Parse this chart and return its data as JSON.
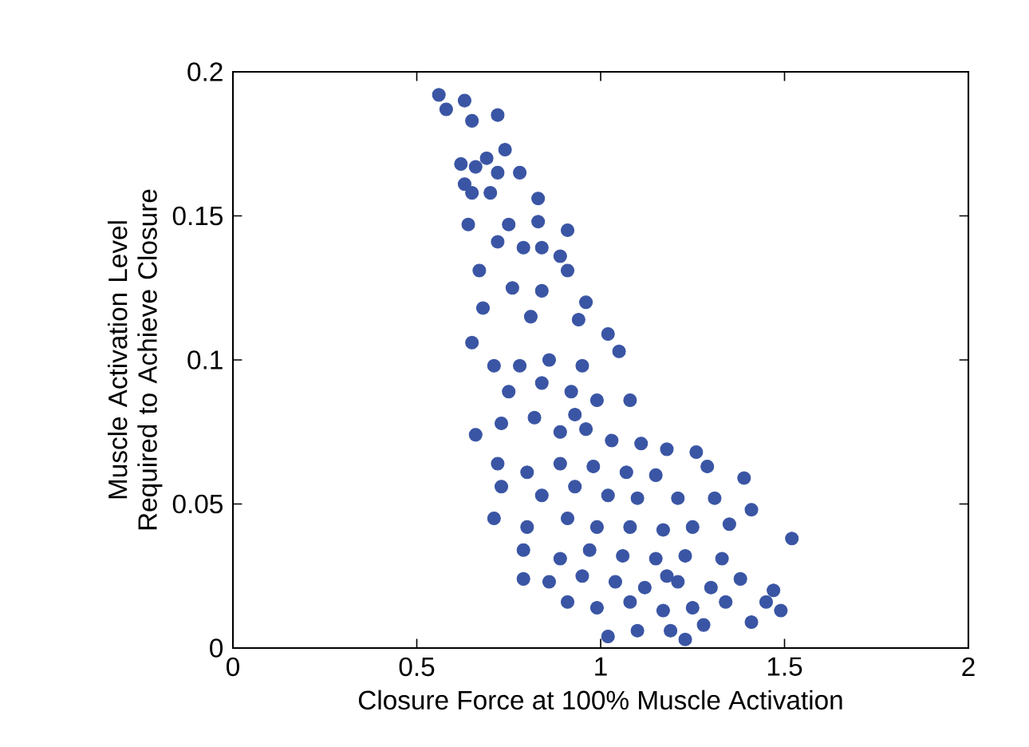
{
  "chart_data": {
    "type": "scatter",
    "xlabel": "Closure Force at 100% Muscle Activation",
    "ylabel": "Muscle Activation Level Required to Achieve Closure",
    "xlim": [
      0,
      2
    ],
    "ylim": [
      0,
      0.2
    ],
    "xticks": [
      0,
      0.5,
      1,
      1.5,
      2
    ],
    "yticks": [
      0,
      0.05,
      0.1,
      0.15,
      0.2
    ],
    "marker": "circle",
    "grid": false,
    "series": [
      {
        "color": "#3a55a4",
        "x": [
          0.56,
          0.63,
          0.58,
          0.65,
          0.72,
          0.74,
          0.66,
          0.62,
          0.69,
          0.72,
          0.63,
          0.78,
          0.65,
          0.7,
          0.83,
          0.64,
          0.75,
          0.83,
          0.91,
          0.72,
          0.79,
          0.84,
          0.89,
          0.91,
          0.67,
          0.76,
          0.84,
          0.96,
          0.68,
          0.81,
          0.94,
          0.65,
          1.02,
          0.71,
          0.78,
          0.86,
          0.95,
          1.05,
          0.75,
          0.84,
          0.92,
          0.99,
          1.08,
          0.66,
          0.73,
          0.82,
          0.89,
          0.96,
          1.03,
          1.11,
          1.18,
          1.26,
          0.72,
          0.8,
          0.89,
          0.98,
          1.07,
          1.15,
          1.29,
          0.73,
          0.84,
          0.93,
          1.02,
          1.1,
          1.21,
          1.31,
          0.71,
          0.8,
          0.91,
          0.99,
          1.08,
          1.17,
          1.25,
          1.35,
          1.52,
          0.79,
          0.89,
          0.97,
          1.06,
          1.15,
          1.23,
          1.33,
          0.79,
          0.86,
          0.95,
          1.04,
          1.12,
          1.21,
          1.3,
          1.38,
          0.91,
          0.99,
          1.08,
          1.17,
          1.25,
          1.34,
          1.45,
          1.49,
          1.02,
          1.1,
          1.19,
          1.28,
          1.41,
          1.23,
          1.39,
          1.41,
          1.47,
          0.93,
          1.18
        ],
        "values": [
          0.192,
          0.19,
          0.187,
          0.183,
          0.185,
          0.173,
          0.167,
          0.168,
          0.17,
          0.165,
          0.161,
          0.165,
          0.158,
          0.158,
          0.156,
          0.147,
          0.147,
          0.148,
          0.145,
          0.141,
          0.139,
          0.139,
          0.136,
          0.131,
          0.131,
          0.125,
          0.124,
          0.12,
          0.118,
          0.115,
          0.114,
          0.106,
          0.109,
          0.098,
          0.098,
          0.1,
          0.098,
          0.103,
          0.089,
          0.092,
          0.089,
          0.086,
          0.086,
          0.074,
          0.078,
          0.08,
          0.075,
          0.076,
          0.072,
          0.071,
          0.069,
          0.068,
          0.064,
          0.061,
          0.064,
          0.063,
          0.061,
          0.06,
          0.063,
          0.056,
          0.053,
          0.056,
          0.053,
          0.052,
          0.052,
          0.052,
          0.045,
          0.042,
          0.045,
          0.042,
          0.042,
          0.041,
          0.042,
          0.043,
          0.038,
          0.034,
          0.031,
          0.034,
          0.032,
          0.031,
          0.032,
          0.031,
          0.024,
          0.023,
          0.025,
          0.023,
          0.021,
          0.023,
          0.021,
          0.024,
          0.016,
          0.014,
          0.016,
          0.013,
          0.014,
          0.016,
          0.016,
          0.013,
          0.004,
          0.006,
          0.006,
          0.008,
          0.009,
          0.003,
          0.059,
          0.048,
          0.02,
          0.081,
          0.025
        ]
      }
    ]
  }
}
